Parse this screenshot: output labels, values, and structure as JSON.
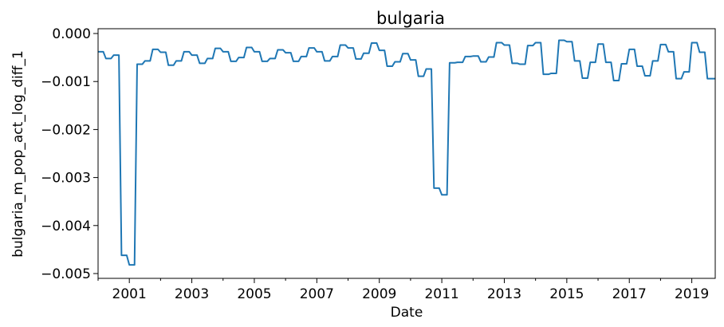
{
  "chart_data": {
    "type": "line",
    "title": "bulgaria",
    "xlabel": "Date",
    "ylabel": "bulgaria_m_pop_act_log_diff_1",
    "x_start": "2000-01",
    "x_end": "2019-10",
    "xlim": [
      "2000-01",
      "2019-10"
    ],
    "ylim": [
      -0.0051,
      0.0001
    ],
    "x_ticks": [
      "2001",
      "2003",
      "2005",
      "2007",
      "2009",
      "2011",
      "2013",
      "2015",
      "2017",
      "2019"
    ],
    "y_ticks": [
      "0.000",
      "−0.001",
      "−0.002",
      "−0.003",
      "−0.004",
      "−0.005"
    ],
    "grid": false,
    "legend": "none",
    "series": [
      {
        "color": "#1f77b4",
        "x": [
          "2000-01",
          "2000-04",
          "2000-07",
          "2000-10",
          "2001-01",
          "2001-04",
          "2001-07",
          "2001-10",
          "2002-01",
          "2002-04",
          "2002-07",
          "2002-10",
          "2003-01",
          "2003-04",
          "2003-07",
          "2003-10",
          "2004-01",
          "2004-04",
          "2004-07",
          "2004-10",
          "2005-01",
          "2005-04",
          "2005-07",
          "2005-10",
          "2006-01",
          "2006-04",
          "2006-07",
          "2006-10",
          "2007-01",
          "2007-04",
          "2007-07",
          "2007-10",
          "2008-01",
          "2008-04",
          "2008-07",
          "2008-10",
          "2009-01",
          "2009-04",
          "2009-07",
          "2009-10",
          "2010-01",
          "2010-04",
          "2010-07",
          "2010-10",
          "2011-01",
          "2011-04",
          "2011-07",
          "2011-10",
          "2012-01",
          "2012-04",
          "2012-07",
          "2012-10",
          "2013-01",
          "2013-04",
          "2013-07",
          "2013-10",
          "2014-01",
          "2014-04",
          "2014-07",
          "2014-10",
          "2015-01",
          "2015-04",
          "2015-07",
          "2015-10",
          "2016-01",
          "2016-04",
          "2016-07",
          "2016-10",
          "2017-01",
          "2017-04",
          "2017-07",
          "2017-10",
          "2018-01",
          "2018-04",
          "2018-07",
          "2018-10",
          "2019-01",
          "2019-04",
          "2019-07",
          "2019-10"
        ],
        "y": [
          -0.00038,
          -0.00052,
          -0.00045,
          -0.00462,
          -0.00482,
          -0.00064,
          -0.00057,
          -0.00033,
          -0.00039,
          -0.00066,
          -0.00057,
          -0.00038,
          -0.00045,
          -0.00062,
          -0.00052,
          -0.00031,
          -0.00038,
          -0.00058,
          -0.0005,
          -0.00029,
          -0.00038,
          -0.00058,
          -0.00052,
          -0.00034,
          -0.0004,
          -0.00058,
          -0.00048,
          -0.0003,
          -0.00038,
          -0.00057,
          -0.00048,
          -0.00024,
          -0.0003,
          -0.00053,
          -0.00041,
          -0.0002,
          -0.00035,
          -0.00068,
          -0.00059,
          -0.00042,
          -0.00055,
          -0.00089,
          -0.00074,
          -0.00322,
          -0.00336,
          -0.00061,
          -0.0006,
          -0.00048,
          -0.00047,
          -0.00059,
          -0.00049,
          -0.00019,
          -0.00024,
          -0.00062,
          -0.00064,
          -0.00025,
          -0.00019,
          -0.00085,
          -0.00083,
          -0.00014,
          -0.00017,
          -0.00057,
          -0.00093,
          -0.0006,
          -0.00022,
          -0.0006,
          -0.00098,
          -0.00063,
          -0.00033,
          -0.00068,
          -0.00088,
          -0.00057,
          -0.00023,
          -0.00038,
          -0.00094,
          -0.0008,
          -0.00019,
          -0.00039,
          -0.00094,
          -0.00094
        ]
      }
    ]
  }
}
